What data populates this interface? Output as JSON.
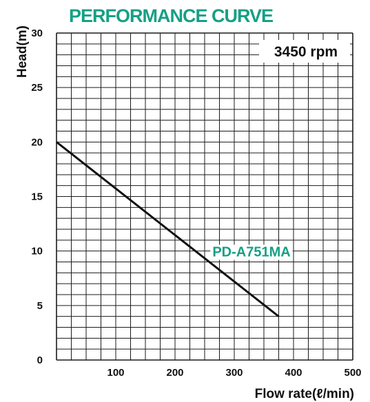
{
  "chart_data": {
    "type": "line",
    "title": "PERFORMANCE CURVE",
    "xlabel": "Flow rate(ℓ/min)",
    "ylabel": "Head(m)",
    "annotation": "3450 rpm",
    "xlim": [
      0,
      500
    ],
    "ylim": [
      0,
      30
    ],
    "x_ticks": [
      "100",
      "200",
      "300",
      "400",
      "500"
    ],
    "y_ticks": [
      "0",
      "5",
      "10",
      "15",
      "20",
      "25",
      "30"
    ],
    "grid": true,
    "series": [
      {
        "name": "PD-A751MA",
        "color": "#111111",
        "x": [
          0,
          375
        ],
        "y": [
          20,
          4
        ]
      }
    ]
  }
}
